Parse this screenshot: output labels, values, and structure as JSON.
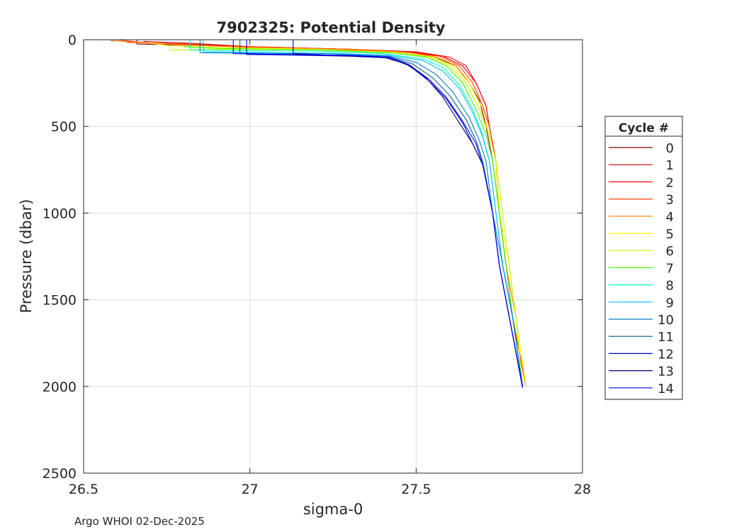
{
  "chart_data": {
    "type": "line",
    "title": "7902325: Potential Density",
    "xlabel": "sigma-0",
    "ylabel": "Pressure (dbar)",
    "xlim": [
      26.5,
      28
    ],
    "ylim": [
      0,
      2500
    ],
    "y_reversed": true,
    "xticks": [
      "26.5",
      "27",
      "27.5",
      "28"
    ],
    "yticks": [
      "0",
      "500",
      "1000",
      "1500",
      "2000",
      "2500"
    ],
    "grid": true,
    "legend": {
      "title": "Cycle #",
      "placement": "outside-right"
    },
    "footer": "Argo WHOI 02-Dec-2025",
    "series": [
      {
        "name": "0",
        "color": "#800000",
        "points": [
          [
            26.66,
            0
          ],
          [
            26.66,
            25
          ],
          [
            26.78,
            30
          ],
          [
            26.98,
            40
          ],
          [
            27.25,
            55
          ],
          [
            27.42,
            70
          ],
          [
            27.55,
            100
          ],
          [
            27.62,
            150
          ],
          [
            27.66,
            250
          ],
          [
            27.69,
            350
          ],
          [
            27.71,
            500
          ],
          [
            27.73,
            700
          ],
          [
            27.75,
            1000
          ],
          [
            27.77,
            1300
          ],
          [
            27.79,
            1600
          ],
          [
            27.83,
            2000
          ]
        ]
      },
      {
        "name": "1",
        "color": "#c00000",
        "points": [
          [
            26.68,
            10
          ],
          [
            26.82,
            20
          ],
          [
            27.0,
            40
          ],
          [
            27.3,
            55
          ],
          [
            27.48,
            70
          ],
          [
            27.58,
            95
          ],
          [
            27.64,
            150
          ],
          [
            27.68,
            250
          ],
          [
            27.71,
            380
          ],
          [
            27.72,
            500
          ],
          [
            27.74,
            700
          ],
          [
            27.75,
            1000
          ],
          [
            27.77,
            1300
          ],
          [
            27.79,
            1600
          ],
          [
            27.83,
            2000
          ]
        ]
      },
      {
        "name": "2",
        "color": "#ff0000",
        "points": [
          [
            26.63,
            15
          ],
          [
            26.8,
            25
          ],
          [
            27.0,
            40
          ],
          [
            27.3,
            55
          ],
          [
            27.5,
            70
          ],
          [
            27.6,
            100
          ],
          [
            27.65,
            150
          ],
          [
            27.68,
            250
          ],
          [
            27.71,
            380
          ],
          [
            27.72,
            500
          ],
          [
            27.74,
            700
          ],
          [
            27.75,
            1000
          ],
          [
            27.77,
            1300
          ],
          [
            27.79,
            1600
          ],
          [
            27.83,
            2000
          ]
        ]
      },
      {
        "name": "3",
        "color": "#ff4000",
        "points": [
          [
            26.6,
            0
          ],
          [
            26.7,
            20
          ],
          [
            26.9,
            35
          ],
          [
            27.2,
            50
          ],
          [
            27.45,
            70
          ],
          [
            27.57,
            95
          ],
          [
            27.63,
            150
          ],
          [
            27.67,
            250
          ],
          [
            27.7,
            380
          ],
          [
            27.72,
            500
          ],
          [
            27.74,
            700
          ],
          [
            27.75,
            1000
          ],
          [
            27.77,
            1300
          ],
          [
            27.79,
            1600
          ],
          [
            27.83,
            2000
          ]
        ]
      },
      {
        "name": "4",
        "color": "#ff8000",
        "points": [
          [
            26.58,
            5
          ],
          [
            26.66,
            15
          ],
          [
            26.8,
            30
          ],
          [
            27.0,
            45
          ],
          [
            27.3,
            55
          ],
          [
            27.47,
            72
          ],
          [
            27.56,
            100
          ],
          [
            27.62,
            150
          ],
          [
            27.66,
            250
          ],
          [
            27.7,
            400
          ],
          [
            27.72,
            550
          ],
          [
            27.74,
            700
          ],
          [
            27.75,
            1000
          ],
          [
            27.77,
            1300
          ],
          [
            27.8,
            1600
          ],
          [
            27.83,
            2000
          ]
        ]
      },
      {
        "name": "5",
        "color": "#ffff00",
        "points": [
          [
            26.7,
            20
          ],
          [
            26.76,
            35
          ],
          [
            26.9,
            45
          ],
          [
            27.2,
            55
          ],
          [
            27.43,
            72
          ],
          [
            27.55,
            100
          ],
          [
            27.61,
            150
          ],
          [
            27.66,
            250
          ],
          [
            27.7,
            400
          ],
          [
            27.72,
            550
          ],
          [
            27.74,
            700
          ],
          [
            27.75,
            1000
          ],
          [
            27.78,
            1300
          ],
          [
            27.8,
            1600
          ],
          [
            27.83,
            2000
          ]
        ]
      },
      {
        "name": "6",
        "color": "#c0ff00",
        "points": [
          [
            26.76,
            40
          ],
          [
            26.76,
            60
          ],
          [
            26.9,
            55
          ],
          [
            27.2,
            58
          ],
          [
            27.42,
            75
          ],
          [
            27.54,
            100
          ],
          [
            27.6,
            150
          ],
          [
            27.65,
            250
          ],
          [
            27.69,
            400
          ],
          [
            27.72,
            550
          ],
          [
            27.74,
            700
          ],
          [
            27.76,
            1000
          ],
          [
            27.78,
            1300
          ],
          [
            27.8,
            1600
          ],
          [
            27.82,
            2000
          ]
        ]
      },
      {
        "name": "7",
        "color": "#40ff00",
        "points": [
          [
            26.8,
            40
          ],
          [
            26.9,
            50
          ],
          [
            27.2,
            58
          ],
          [
            27.42,
            75
          ],
          [
            27.53,
            100
          ],
          [
            27.59,
            150
          ],
          [
            27.64,
            250
          ],
          [
            27.68,
            400
          ],
          [
            27.71,
            550
          ],
          [
            27.73,
            700
          ],
          [
            27.75,
            1000
          ],
          [
            27.77,
            1300
          ],
          [
            27.79,
            1600
          ],
          [
            27.82,
            2000
          ]
        ]
      },
      {
        "name": "8",
        "color": "#00ffc0",
        "points": [
          [
            26.82,
            0
          ],
          [
            26.82,
            60
          ],
          [
            26.95,
            62
          ],
          [
            27.2,
            65
          ],
          [
            27.4,
            80
          ],
          [
            27.52,
            110
          ],
          [
            27.58,
            160
          ],
          [
            27.63,
            260
          ],
          [
            27.67,
            400
          ],
          [
            27.7,
            550
          ],
          [
            27.72,
            700
          ],
          [
            27.74,
            1000
          ],
          [
            27.76,
            1300
          ],
          [
            27.79,
            1600
          ],
          [
            27.82,
            2000
          ]
        ]
      },
      {
        "name": "9",
        "color": "#00c0ff",
        "points": [
          [
            26.86,
            0
          ],
          [
            26.86,
            70
          ],
          [
            27.0,
            72
          ],
          [
            27.25,
            78
          ],
          [
            27.42,
            90
          ],
          [
            27.52,
            120
          ],
          [
            27.58,
            180
          ],
          [
            27.63,
            280
          ],
          [
            27.67,
            420
          ],
          [
            27.7,
            560
          ],
          [
            27.72,
            700
          ],
          [
            27.74,
            1000
          ],
          [
            27.76,
            1300
          ],
          [
            27.79,
            1600
          ],
          [
            27.82,
            2000
          ]
        ]
      },
      {
        "name": "10",
        "color": "#0080c0",
        "points": [
          [
            26.85,
            0
          ],
          [
            26.85,
            75
          ],
          [
            27.0,
            78
          ],
          [
            27.25,
            82
          ],
          [
            27.42,
            95
          ],
          [
            27.5,
            130
          ],
          [
            27.56,
            200
          ],
          [
            27.61,
            300
          ],
          [
            27.66,
            450
          ],
          [
            27.69,
            580
          ],
          [
            27.71,
            700
          ],
          [
            27.73,
            1000
          ],
          [
            27.76,
            1300
          ],
          [
            27.79,
            1600
          ],
          [
            27.82,
            2000
          ]
        ]
      },
      {
        "name": "11",
        "color": "#006080",
        "points": [
          [
            26.97,
            0
          ],
          [
            26.97,
            80
          ],
          [
            27.1,
            85
          ],
          [
            27.3,
            90
          ],
          [
            27.42,
            100
          ],
          [
            27.49,
            140
          ],
          [
            27.55,
            220
          ],
          [
            27.6,
            320
          ],
          [
            27.65,
            460
          ],
          [
            27.68,
            580
          ],
          [
            27.7,
            700
          ],
          [
            27.73,
            1000
          ],
          [
            27.75,
            1300
          ],
          [
            27.78,
            1600
          ],
          [
            27.82,
            2000
          ]
        ]
      },
      {
        "name": "12",
        "color": "#0000c0",
        "points": [
          [
            26.99,
            0
          ],
          [
            26.99,
            85
          ],
          [
            27.1,
            88
          ],
          [
            27.3,
            95
          ],
          [
            27.42,
            105
          ],
          [
            27.48,
            150
          ],
          [
            27.54,
            240
          ],
          [
            27.59,
            340
          ],
          [
            27.64,
            480
          ],
          [
            27.67,
            600
          ],
          [
            27.7,
            720
          ],
          [
            27.73,
            1000
          ],
          [
            27.75,
            1300
          ],
          [
            27.78,
            1600
          ],
          [
            27.82,
            2000
          ]
        ]
      },
      {
        "name": "13",
        "color": "#000080",
        "points": [
          [
            27.13,
            0
          ],
          [
            27.13,
            80
          ],
          [
            27.25,
            90
          ],
          [
            27.4,
            100
          ],
          [
            27.47,
            140
          ],
          [
            27.53,
            220
          ],
          [
            27.58,
            330
          ],
          [
            27.63,
            480
          ],
          [
            27.67,
            600
          ],
          [
            27.7,
            720
          ],
          [
            27.73,
            1000
          ],
          [
            27.75,
            1300
          ],
          [
            27.78,
            1600
          ],
          [
            27.82,
            2000
          ]
        ]
      },
      {
        "name": "14",
        "color": "#0000ff",
        "points": [
          [
            26.95,
            0
          ],
          [
            26.95,
            80
          ],
          [
            27.1,
            85
          ],
          [
            27.3,
            90
          ],
          [
            27.42,
            100
          ],
          [
            27.48,
            145
          ],
          [
            27.54,
            230
          ],
          [
            27.59,
            330
          ],
          [
            27.64,
            470
          ],
          [
            27.68,
            600
          ],
          [
            27.7,
            720
          ],
          [
            27.73,
            1000
          ],
          [
            27.75,
            1300
          ],
          [
            27.78,
            1600
          ],
          [
            27.82,
            2010
          ]
        ]
      }
    ]
  }
}
